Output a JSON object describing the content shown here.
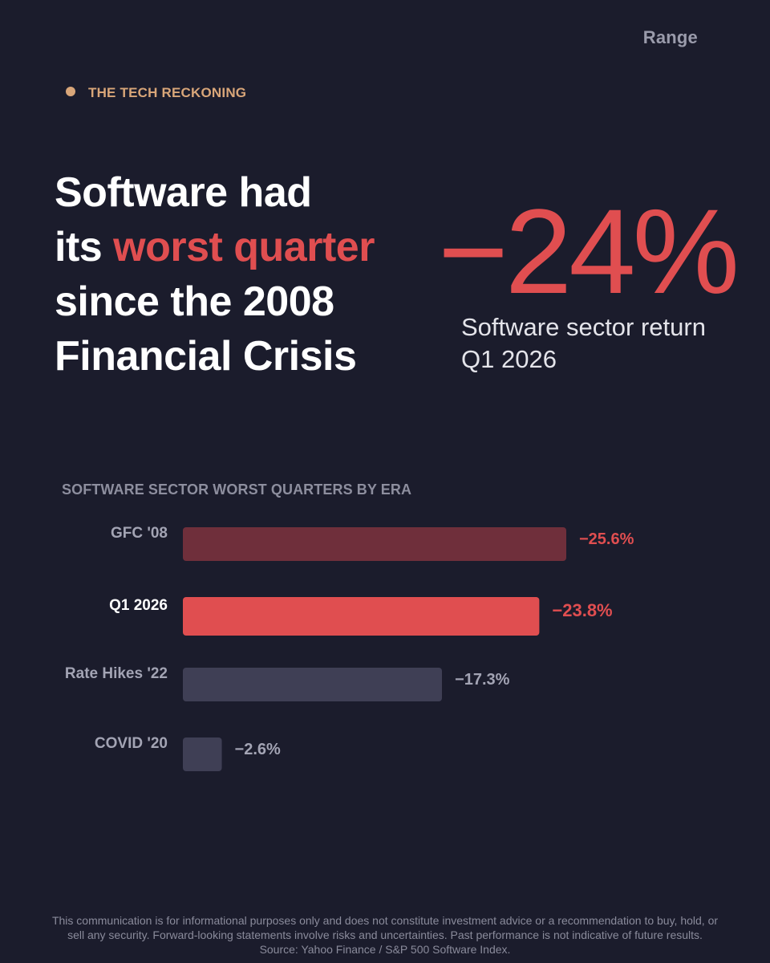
{
  "brand": "Range",
  "kicker": "THE TECH RECKONING",
  "headline": {
    "line1": "Software had",
    "line2_start": "its ",
    "line2_accent": "worst quarter",
    "line3": "since the 2008",
    "line4": "Financial Crisis"
  },
  "stat": {
    "value": "−24%",
    "caption_line1": "Software sector return",
    "caption_line2": "Q1 2026"
  },
  "colors": {
    "background": "#1b1c2c",
    "accent": "#e04e50",
    "kicker": "#d9a679",
    "bar_muted_red": "#6f2f3b",
    "bar_gray": "#3f3f55"
  },
  "chart_data": {
    "type": "bar",
    "orientation": "horizontal",
    "title": "SOFTWARE SECTOR WORST QUARTERS BY ERA",
    "categories": [
      "GFC '08",
      "Q1 2026",
      "Rate Hikes '22",
      "COVID '20"
    ],
    "values": [
      -25.6,
      -23.8,
      -17.3,
      -2.6
    ],
    "value_labels": [
      "−25.6%",
      "−23.8%",
      "−17.3%",
      "−2.6%"
    ],
    "highlight": "Q1 2026",
    "bar_colors": [
      "#6f2f3b",
      "#e04e50",
      "#3f3f55",
      "#3f3f55"
    ],
    "label_colors": [
      "#e04e50",
      "#e04e50",
      "#a3a4b4",
      "#a3a4b4"
    ],
    "grid": false,
    "legend": "none"
  },
  "footer": {
    "disclaimer": "This communication is for informational purposes only and does not constitute investment advice or a recommendation to buy, hold, or sell any security. Forward-looking statements involve risks and uncertainties. Past performance is not indicative of future results. Source: Yahoo Finance / S&P 500 Software Index."
  }
}
